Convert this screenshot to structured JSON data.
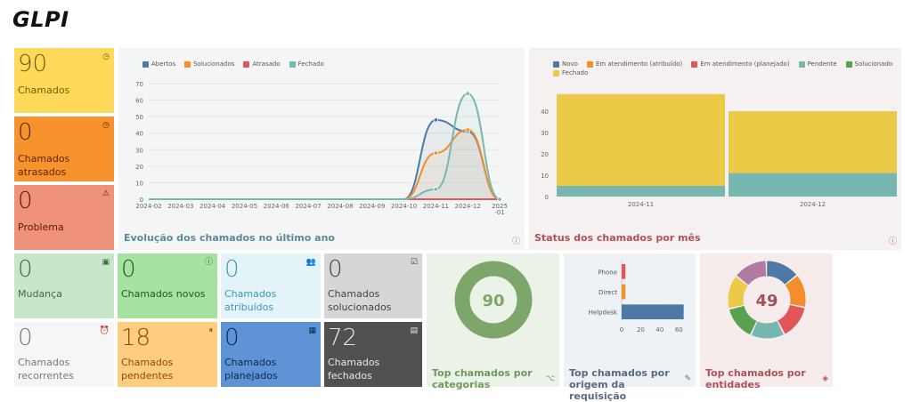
{
  "app": {
    "logo": "GLPI"
  },
  "cards": {
    "chamados": {
      "value": "90",
      "label": "Chamados"
    },
    "atrasados": {
      "value": "0",
      "label": "Chamados atrasados"
    },
    "problema": {
      "value": "0",
      "label": "Problema"
    },
    "mudanca": {
      "value": "0",
      "label": "Mudança"
    },
    "novos": {
      "value": "0",
      "label": "Chamados novos"
    },
    "atribuidos": {
      "value": "0",
      "label": "Chamados atribuídos"
    },
    "solucionados": {
      "value": "0",
      "label": "Chamados solucionados"
    },
    "recorrentes": {
      "value": "0",
      "label": "Chamados recorrentes"
    },
    "pendentes": {
      "value": "18",
      "label": "Chamados pendentes"
    },
    "planejados": {
      "value": "0",
      "label": "Chamados planejados"
    },
    "fechados": {
      "value": "72",
      "label": "Chamados fechados"
    }
  },
  "widgets": {
    "categorias": {
      "title": "Top chamados por categorias",
      "center": "90"
    },
    "origem": {
      "title": "Top chamados por origem da requisição"
    },
    "entidades": {
      "title": "Top chamados por entidades",
      "center": "49"
    }
  },
  "colors": {
    "abertos": "#4e79a7",
    "solucionados_line": "#f28e2b",
    "atrasado": "#e15759",
    "fechado": "#76b7b2",
    "pendente": "#76b7b2",
    "em_atend_atrib": "#f28e2b",
    "em_atend_plan": "#e15759",
    "novo": "#4e79a7",
    "solucionado_bar": "#59a14f",
    "fechado_bar": "#edc948"
  },
  "chart_data": [
    {
      "type": "line",
      "title": "Evolução dos chamados no último ano",
      "categories": [
        "2024-02",
        "2024-03",
        "2024-04",
        "2024-05",
        "2024-06",
        "2024-07",
        "2024-08",
        "2024-09",
        "2024-10",
        "2024-11",
        "2024-12",
        "2025-01"
      ],
      "series": [
        {
          "name": "Abertos",
          "values": [
            0,
            0,
            0,
            0,
            0,
            0,
            0,
            0,
            0,
            48,
            41,
            0
          ]
        },
        {
          "name": "Solucionados",
          "values": [
            0,
            0,
            0,
            0,
            0,
            0,
            0,
            0,
            0,
            28,
            42,
            0
          ]
        },
        {
          "name": "Atrasado",
          "values": [
            0,
            0,
            0,
            0,
            0,
            0,
            0,
            0,
            0,
            0,
            0,
            0
          ]
        },
        {
          "name": "Fechado",
          "values": [
            0,
            0,
            0,
            0,
            0,
            0,
            0,
            0,
            0,
            6,
            64,
            0
          ]
        }
      ],
      "ylim": [
        0,
        70
      ],
      "yticks": [
        0,
        10,
        20,
        30,
        40,
        50,
        60,
        70
      ],
      "legend": "top-left"
    },
    {
      "type": "bar",
      "title": "Status dos chamados por mês",
      "categories": [
        "2024-11",
        "2024-12"
      ],
      "series": [
        {
          "name": "Novo",
          "values": [
            0,
            0
          ]
        },
        {
          "name": "Em atendimento (atribuído)",
          "values": [
            0,
            0
          ]
        },
        {
          "name": "Em atendimento (planejado)",
          "values": [
            0,
            0
          ]
        },
        {
          "name": "Pendente",
          "values": [
            5,
            11
          ]
        },
        {
          "name": "Solucionado",
          "values": [
            0,
            0
          ]
        },
        {
          "name": "Fechado",
          "values": [
            43,
            29
          ]
        }
      ],
      "stacked": true,
      "ylim": [
        0,
        50
      ],
      "yticks": [
        0,
        10,
        20,
        30,
        40
      ],
      "legend": "top-left"
    },
    {
      "type": "bar",
      "orientation": "horizontal",
      "title": "Top chamados por origem da requisição",
      "categories": [
        "Phone",
        "Direct",
        "Helpdesk"
      ],
      "values": [
        4,
        4,
        65
      ],
      "colors": [
        "#e15759",
        "#f28e2b",
        "#4e79a7"
      ],
      "xticks": [
        0,
        20,
        40,
        60
      ]
    }
  ]
}
